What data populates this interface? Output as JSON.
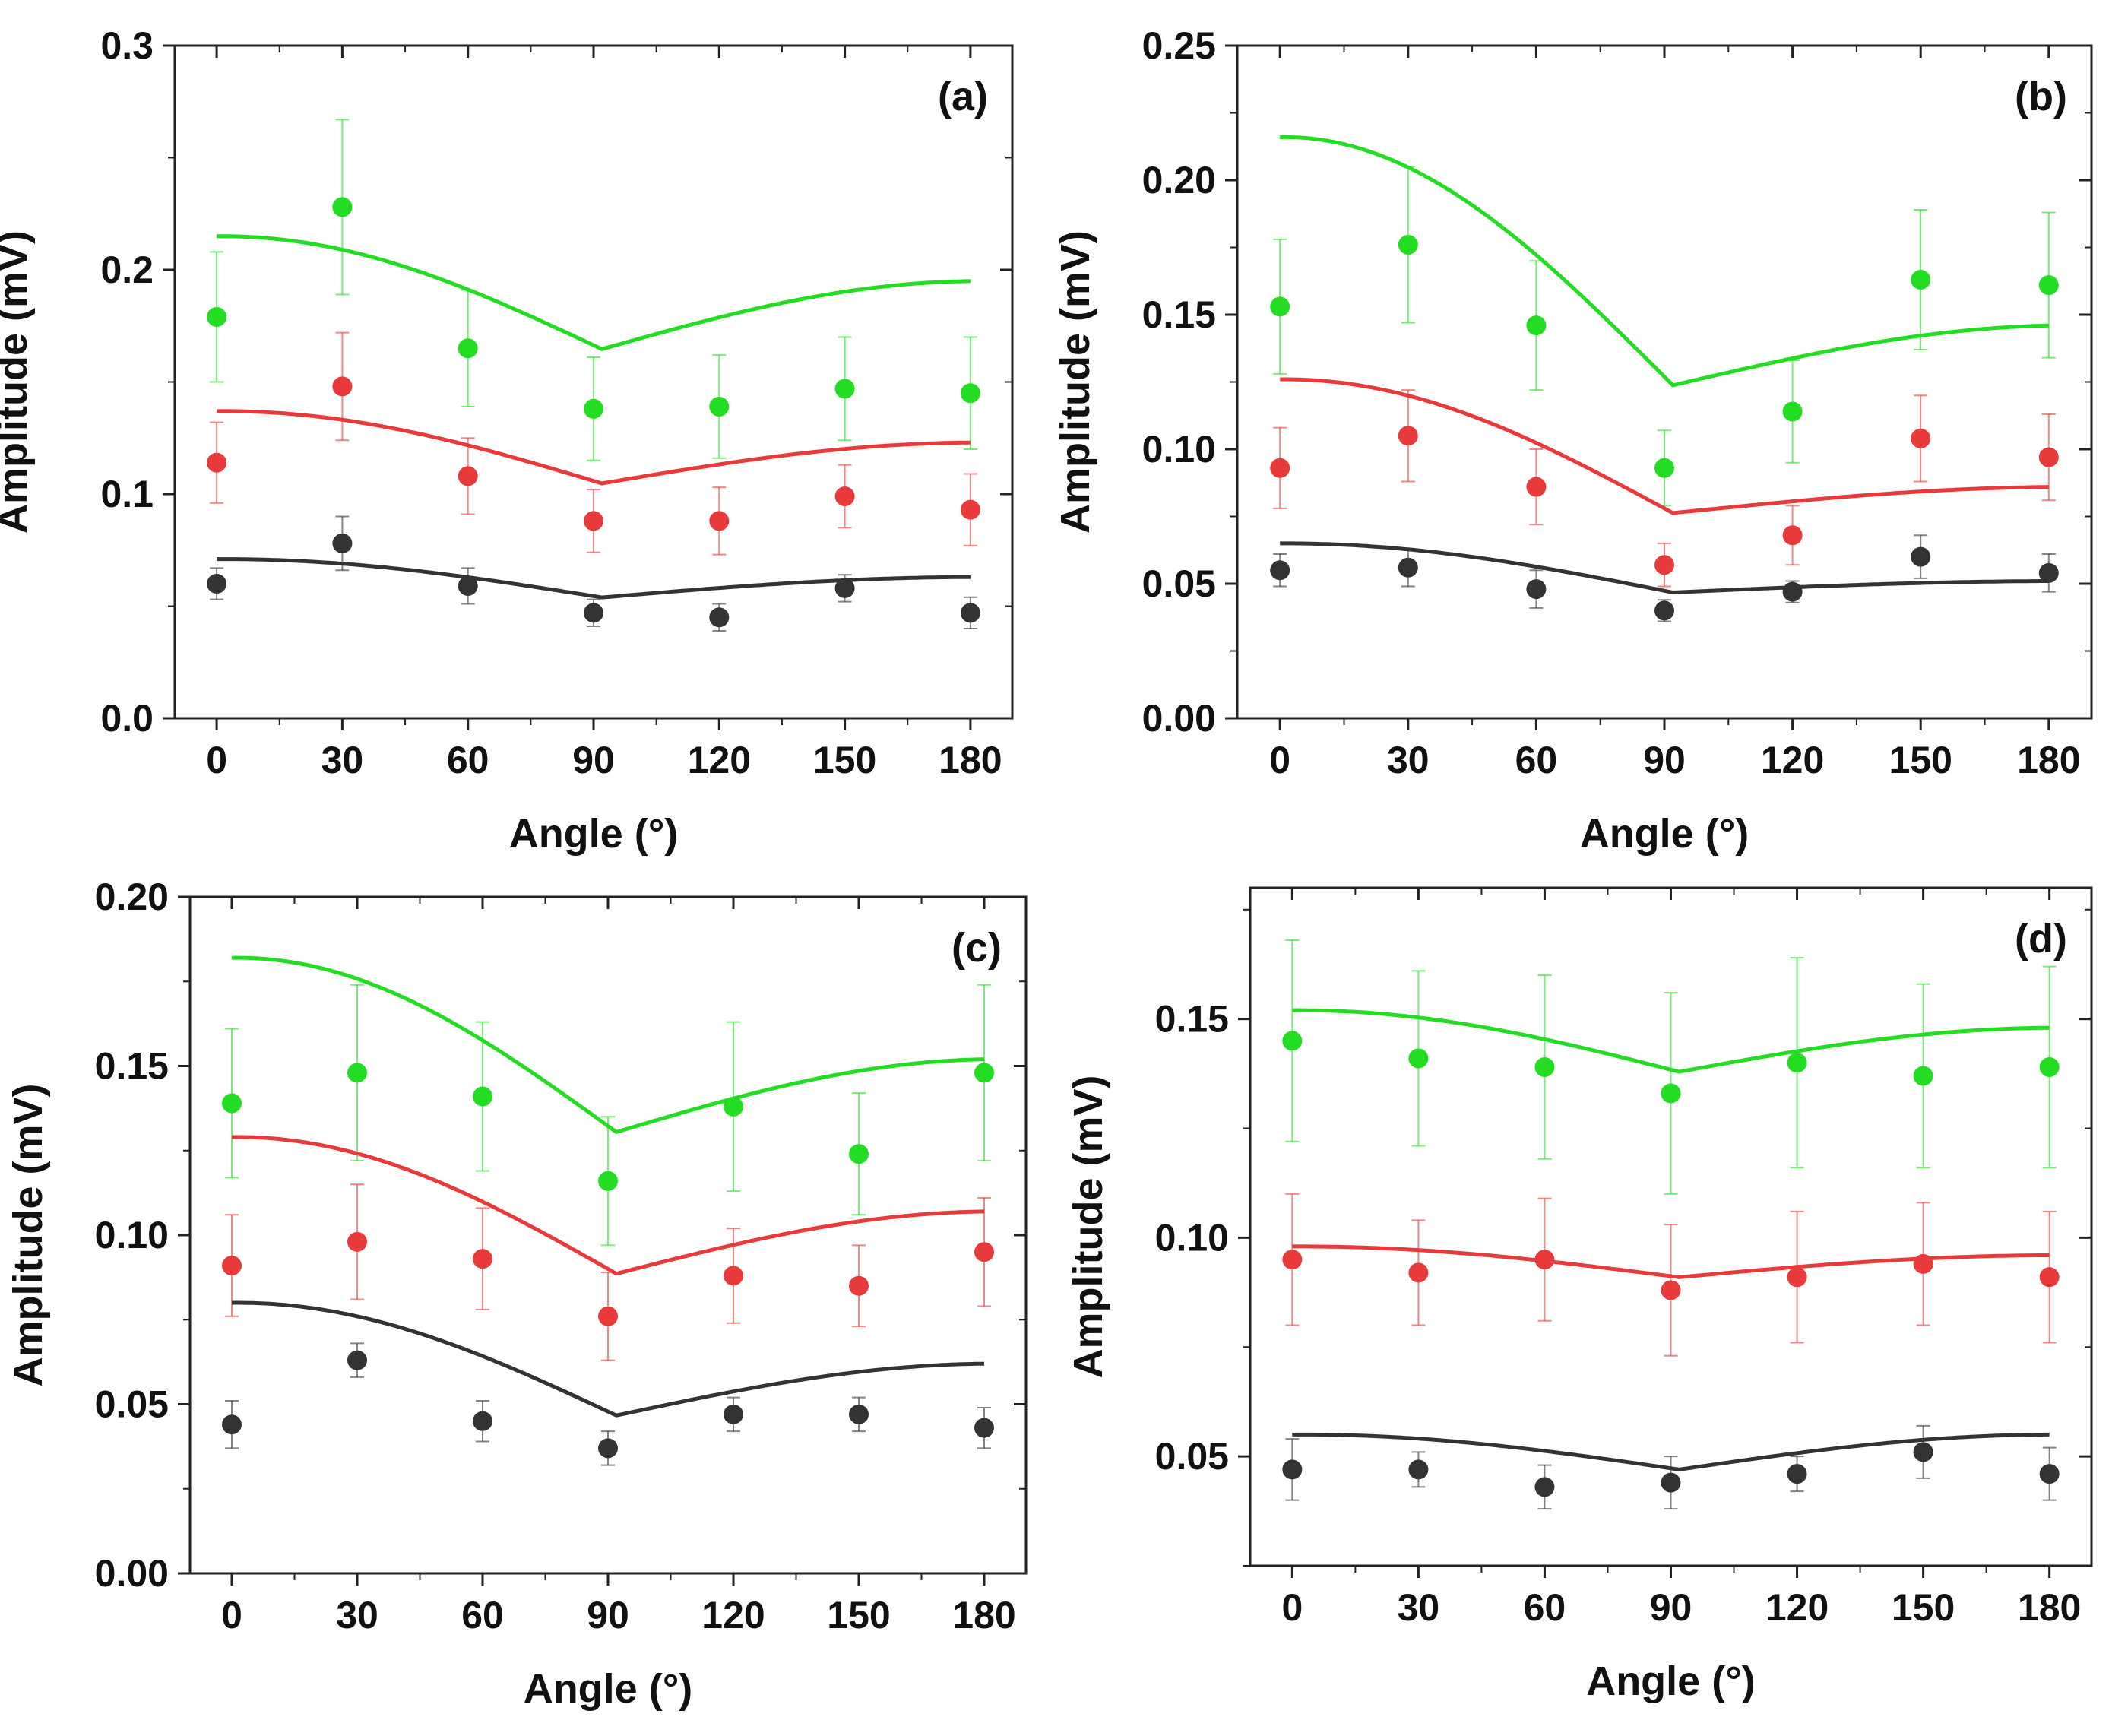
{
  "figure": {
    "panel_labels": [
      "(a)",
      "(b)",
      "(c)",
      "(d)"
    ],
    "series_colors": {
      "green": "#22dd22",
      "red": "#e83a3a",
      "black": "#333333"
    }
  },
  "chart_data": [
    {
      "type": "scatter",
      "panel": "(a)",
      "xlabel": "Angle (°)",
      "ylabel": "Amplitude (mV)",
      "x": [
        0,
        30,
        60,
        90,
        120,
        150,
        180
      ],
      "xlim": [
        -10,
        190
      ],
      "ylim": [
        0,
        0.3
      ],
      "xticks": [
        0,
        30,
        60,
        90,
        120,
        150,
        180
      ],
      "xtick_labels": [
        "0",
        "30",
        "60",
        "90",
        "120",
        "150",
        "180"
      ],
      "yticks": [
        0,
        0.1,
        0.2,
        0.3
      ],
      "ytick_labels": [
        "0.0",
        "0.1",
        "0.2",
        "0.3"
      ],
      "series": [
        {
          "name": "green",
          "color": "#22dd22",
          "values": [
            0.179,
            0.228,
            0.165,
            0.138,
            0.139,
            0.147,
            0.145
          ],
          "errors": [
            0.029,
            0.039,
            0.026,
            0.023,
            0.023,
            0.023,
            0.025
          ],
          "fit": {
            "A": 0.04,
            "B": 0.165,
            "C": 0.01
          }
        },
        {
          "name": "red",
          "color": "#e83a3a",
          "values": [
            0.114,
            0.148,
            0.108,
            0.088,
            0.088,
            0.099,
            0.093
          ],
          "errors": [
            0.018,
            0.024,
            0.017,
            0.014,
            0.015,
            0.014,
            0.016
          ],
          "fit": {
            "A": 0.025,
            "B": 0.105,
            "C": 0.007
          }
        },
        {
          "name": "black",
          "color": "#333333",
          "values": [
            0.06,
            0.078,
            0.059,
            0.047,
            0.045,
            0.058,
            0.047
          ],
          "errors": [
            0.007,
            0.012,
            0.008,
            0.006,
            0.006,
            0.006,
            0.007
          ],
          "fit": {
            "A": 0.013,
            "B": 0.054,
            "C": 0.004
          }
        }
      ]
    },
    {
      "type": "scatter",
      "panel": "(b)",
      "xlabel": "Angle (°)",
      "ylabel": "Amplitude (mV)",
      "x": [
        0,
        30,
        60,
        90,
        120,
        150,
        180
      ],
      "xlim": [
        -10,
        190
      ],
      "ylim": [
        0,
        0.25
      ],
      "xticks": [
        0,
        30,
        60,
        90,
        120,
        150,
        180
      ],
      "xtick_labels": [
        "0",
        "30",
        "60",
        "90",
        "120",
        "150",
        "180"
      ],
      "yticks": [
        0,
        0.05,
        0.1,
        0.15,
        0.2,
        0.25
      ],
      "ytick_labels": [
        "0.00",
        "0.05",
        "0.10",
        "0.15",
        "0.20",
        "0.25"
      ],
      "series": [
        {
          "name": "green",
          "color": "#22dd22",
          "values": [
            0.153,
            0.176,
            0.146,
            0.093,
            0.114,
            0.163,
            0.161
          ],
          "errors": [
            0.025,
            0.029,
            0.024,
            0.014,
            0.019,
            0.026,
            0.027
          ],
          "fit": {
            "A": 0.056,
            "B": 0.125,
            "C": 0.035
          }
        },
        {
          "name": "red",
          "color": "#e83a3a",
          "values": [
            0.093,
            0.105,
            0.086,
            0.057,
            0.068,
            0.104,
            0.097
          ],
          "errors": [
            0.015,
            0.017,
            0.014,
            0.008,
            0.011,
            0.016,
            0.016
          ],
          "fit": {
            "A": 0.029,
            "B": 0.077,
            "C": 0.02
          }
        },
        {
          "name": "black",
          "color": "#333333",
          "values": [
            0.055,
            0.056,
            0.048,
            0.04,
            0.047,
            0.06,
            0.054
          ],
          "errors": [
            0.006,
            0.007,
            0.007,
            0.004,
            0.004,
            0.008,
            0.007
          ],
          "fit": {
            "A": 0.011,
            "B": 0.047,
            "C": 0.007
          }
        }
      ]
    },
    {
      "type": "scatter",
      "panel": "(c)",
      "xlabel": "Angle (°)",
      "ylabel": "Amplitude (mV)",
      "x": [
        0,
        30,
        60,
        90,
        120,
        150,
        180
      ],
      "xlim": [
        -10,
        190
      ],
      "ylim": [
        0,
        0.2
      ],
      "xticks": [
        0,
        30,
        60,
        90,
        120,
        150,
        180
      ],
      "xtick_labels": [
        "0",
        "30",
        "60",
        "90",
        "120",
        "150",
        "180"
      ],
      "yticks": [
        0,
        0.05,
        0.1,
        0.15,
        0.2
      ],
      "ytick_labels": [
        "0.00",
        "0.05",
        "0.10",
        "0.15",
        "0.20"
      ],
      "series": [
        {
          "name": "green",
          "color": "#22dd22",
          "values": [
            0.139,
            0.148,
            0.141,
            0.116,
            0.138,
            0.124,
            0.148
          ],
          "errors": [
            0.022,
            0.026,
            0.022,
            0.019,
            0.025,
            0.018,
            0.026
          ],
          "fit": {
            "A": 0.036,
            "B": 0.131,
            "C": 0.015
          }
        },
        {
          "name": "red",
          "color": "#e83a3a",
          "values": [
            0.091,
            0.098,
            0.093,
            0.076,
            0.088,
            0.085,
            0.095
          ],
          "errors": [
            0.015,
            0.017,
            0.015,
            0.013,
            0.014,
            0.012,
            0.016
          ],
          "fit": {
            "A": 0.029,
            "B": 0.089,
            "C": 0.011
          }
        },
        {
          "name": "black",
          "color": "#333333",
          "values": [
            0.044,
            0.063,
            0.045,
            0.037,
            0.047,
            0.047,
            0.043
          ],
          "errors": [
            0.007,
            0.005,
            0.006,
            0.005,
            0.005,
            0.005,
            0.006
          ],
          "fit": {
            "A": 0.024,
            "B": 0.047,
            "C": 0.009
          }
        }
      ]
    },
    {
      "type": "scatter",
      "panel": "(d)",
      "xlabel": "Angle (°)",
      "ylabel": "Amplitude (mV)",
      "x": [
        0,
        30,
        60,
        90,
        120,
        150,
        180
      ],
      "xlim": [
        -10,
        190
      ],
      "ylim": [
        0.025,
        0.18
      ],
      "xticks": [
        0,
        30,
        60,
        90,
        120,
        150,
        180
      ],
      "xtick_labels": [
        "0",
        "30",
        "60",
        "90",
        "120",
        "150",
        "180"
      ],
      "yticks": [
        0.05,
        0.1,
        0.15
      ],
      "ytick_labels": [
        "0.05",
        "0.10",
        "0.15"
      ],
      "series": [
        {
          "name": "green",
          "color": "#22dd22",
          "values": [
            0.145,
            0.141,
            0.139,
            0.133,
            0.14,
            0.137,
            0.139
          ],
          "errors": [
            0.023,
            0.02,
            0.021,
            0.023,
            0.024,
            0.021,
            0.023
          ],
          "fit": {
            "A": 0.012,
            "B": 0.138,
            "C": 0.002
          }
        },
        {
          "name": "red",
          "color": "#e83a3a",
          "values": [
            0.095,
            0.092,
            0.095,
            0.088,
            0.091,
            0.094,
            0.091
          ],
          "errors": [
            0.015,
            0.012,
            0.014,
            0.015,
            0.015,
            0.014,
            0.015
          ],
          "fit": {
            "A": 0.006,
            "B": 0.091,
            "C": 0.001
          }
        },
        {
          "name": "black",
          "color": "#333333",
          "values": [
            0.047,
            0.047,
            0.043,
            0.044,
            0.046,
            0.051,
            0.046
          ],
          "errors": [
            0.007,
            0.004,
            0.005,
            0.006,
            0.004,
            0.006,
            0.006
          ],
          "fit": {
            "A": 0.008,
            "B": 0.047,
            "C": 0.0
          }
        }
      ]
    }
  ]
}
